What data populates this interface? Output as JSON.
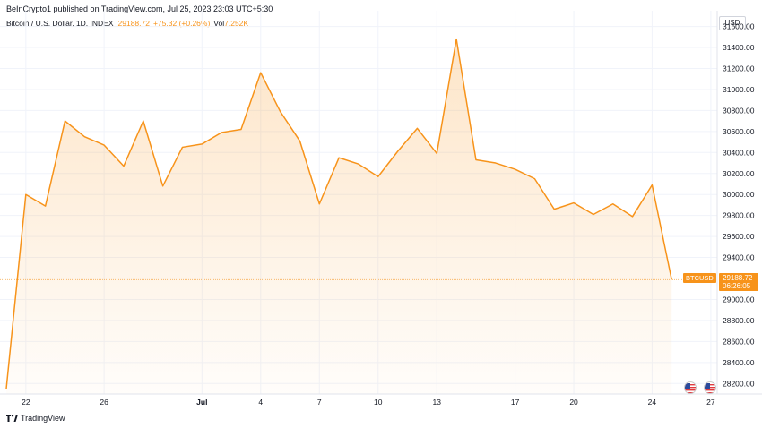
{
  "header": {
    "publisher_line": "BeInCrypto1 published on TradingView.com, Jul 25, 2023 23:03 UTC+5:30",
    "symbol_desc": "Bitcoin / U.S. Dollar, 1D, INDEX",
    "last_price": "29188.72",
    "change": "+75.32 (+0.26%)",
    "vol_label": "Vol",
    "vol_value": "7.252K"
  },
  "price_axis": {
    "currency": "USD",
    "tick_labels": [
      "31600.00",
      "31400.00",
      "31200.00",
      "31000.00",
      "30800.00",
      "30600.00",
      "30400.00",
      "30200.00",
      "30000.00",
      "29800.00",
      "29600.00",
      "29400.00",
      "29000.00",
      "28800.00",
      "28600.00",
      "28400.00",
      "28200.00"
    ]
  },
  "time_axis": {
    "ticks": [
      {
        "label": "22",
        "bold": false
      },
      {
        "label": "26",
        "bold": false
      },
      {
        "label": "Jul",
        "bold": true
      },
      {
        "label": "4",
        "bold": false
      },
      {
        "label": "7",
        "bold": false
      },
      {
        "label": "10",
        "bold": false
      },
      {
        "label": "13",
        "bold": false
      },
      {
        "label": "17",
        "bold": false
      },
      {
        "label": "20",
        "bold": false
      },
      {
        "label": "24",
        "bold": false
      },
      {
        "label": "27",
        "bold": false
      }
    ]
  },
  "price_tag": {
    "symbol": "BTCUSD",
    "price": "29188.72",
    "countdown": "06:26:05"
  },
  "footer": {
    "brand": "TradingView"
  },
  "colors": {
    "line": "#f7931a",
    "grid": "#f0f3fa",
    "text": "#131722"
  },
  "chart_data": {
    "type": "area",
    "x": [
      "Jun 21",
      "Jun 22",
      "Jun 23",
      "Jun 24",
      "Jun 25",
      "Jun 26",
      "Jun 27",
      "Jun 28",
      "Jun 29",
      "Jun 30",
      "Jul 1",
      "Jul 2",
      "Jul 3",
      "Jul 4",
      "Jul 5",
      "Jul 6",
      "Jul 7",
      "Jul 8",
      "Jul 9",
      "Jul 10",
      "Jul 11",
      "Jul 12",
      "Jul 13",
      "Jul 14",
      "Jul 15",
      "Jul 16",
      "Jul 17",
      "Jul 18",
      "Jul 19",
      "Jul 20",
      "Jul 21",
      "Jul 22",
      "Jul 23",
      "Jul 24",
      "Jul 25"
    ],
    "series": [
      {
        "values": [
          28150,
          30000,
          29890,
          30700,
          30550,
          30470,
          30270,
          30700,
          30080,
          30450,
          30480,
          30590,
          30620,
          31160,
          30790,
          30510,
          29910,
          30350,
          30290,
          30170,
          30410,
          30630,
          30390,
          31480,
          30330,
          30300,
          30240,
          30150,
          29860,
          29920,
          29810,
          29910,
          29790,
          30090,
          29188.72
        ]
      }
    ],
    "ylim": [
      28100,
      31750
    ],
    "grid": true
  }
}
